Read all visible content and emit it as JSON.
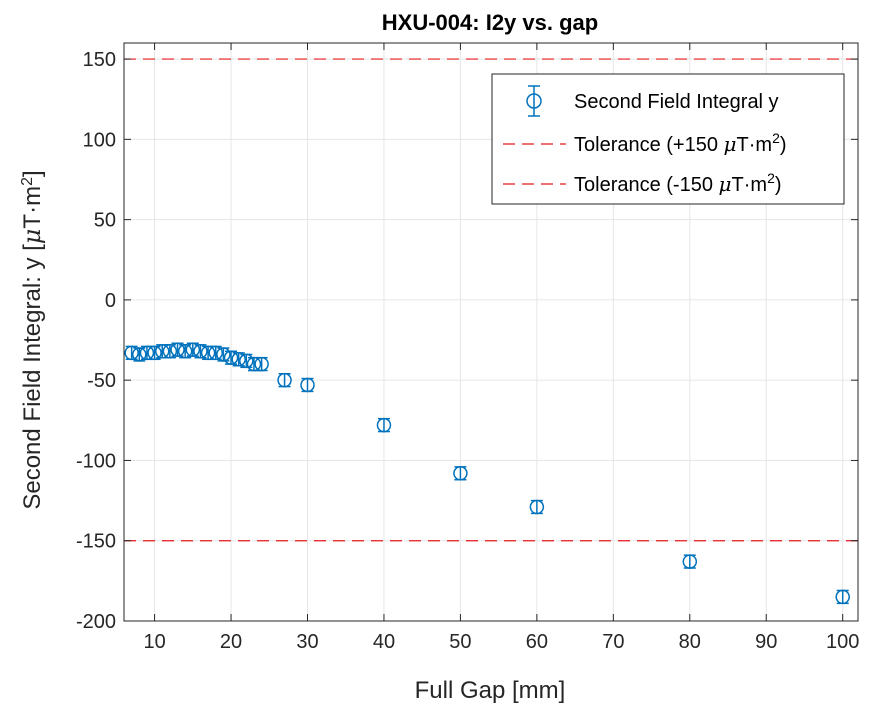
{
  "chart_data": {
    "type": "scatter",
    "title": "HXU-004: I2y vs. gap",
    "xlabel": "Full Gap [mm]",
    "ylabel": {
      "main": "Second Field Integral: y [",
      "mu": "μ",
      "unit": "T·m",
      "sup": "2",
      "close": "]"
    },
    "xlim": [
      6,
      102
    ],
    "ylim": [
      -200,
      160
    ],
    "xticks": [
      10,
      20,
      30,
      40,
      50,
      60,
      70,
      80,
      90,
      100
    ],
    "yticks": [
      -200,
      -150,
      -100,
      -50,
      0,
      50,
      100,
      150
    ],
    "grid": true,
    "legend_position": "top-right",
    "colors": {
      "series": "#0072bd",
      "tolerance": "#e41a1c",
      "grid": "#e6e6e6",
      "axis": "#262626"
    },
    "series": [
      {
        "name": "Second Field Integral y",
        "marker": "circle",
        "error": 4,
        "points": [
          {
            "x": 7,
            "y": -33
          },
          {
            "x": 8,
            "y": -34
          },
          {
            "x": 9,
            "y": -33
          },
          {
            "x": 10,
            "y": -33
          },
          {
            "x": 11,
            "y": -32
          },
          {
            "x": 12,
            "y": -32
          },
          {
            "x": 13,
            "y": -31
          },
          {
            "x": 14,
            "y": -32
          },
          {
            "x": 15,
            "y": -31
          },
          {
            "x": 16,
            "y": -32
          },
          {
            "x": 17,
            "y": -33
          },
          {
            "x": 18,
            "y": -33
          },
          {
            "x": 19,
            "y": -34
          },
          {
            "x": 20,
            "y": -36
          },
          {
            "x": 21,
            "y": -37
          },
          {
            "x": 22,
            "y": -38
          },
          {
            "x": 23,
            "y": -40
          },
          {
            "x": 24,
            "y": -40
          },
          {
            "x": 27,
            "y": -50
          },
          {
            "x": 30,
            "y": -53
          },
          {
            "x": 40,
            "y": -78
          },
          {
            "x": 50,
            "y": -108
          },
          {
            "x": 60,
            "y": -129
          },
          {
            "x": 80,
            "y": -163
          },
          {
            "x": 100,
            "y": -185
          }
        ]
      }
    ],
    "tolerance_lines": [
      {
        "name": "Tolerance (+150 ",
        "mu": "μ",
        "unit": "T·m",
        "sup": "2",
        "close": ")",
        "y": 150
      },
      {
        "name": "Tolerance (-150 ",
        "mu": "μ",
        "unit": "T·m",
        "sup": "2",
        "close": ")",
        "y": -150
      }
    ]
  }
}
